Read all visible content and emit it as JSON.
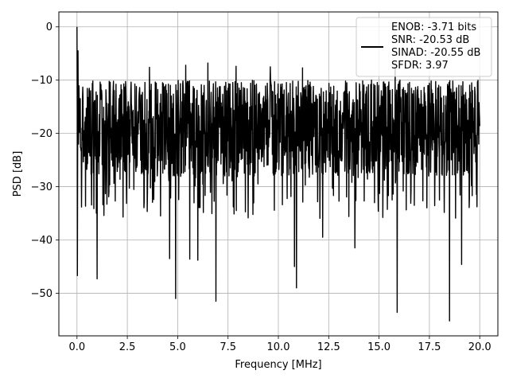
{
  "chart_data": {
    "type": "line",
    "title": "",
    "xlabel": "Frequency [MHz]",
    "ylabel": "PSD [dB]",
    "xlim": [
      -0.9,
      20.9
    ],
    "ylim": [
      -58,
      2.8
    ],
    "xticks": [
      0.0,
      2.5,
      5.0,
      7.5,
      10.0,
      12.5,
      15.0,
      17.5,
      20.0
    ],
    "xtick_labels": [
      "0.0",
      "2.5",
      "5.0",
      "7.5",
      "10.0",
      "12.5",
      "15.0",
      "17.5",
      "20.0"
    ],
    "yticks": [
      0,
      -10,
      -20,
      -30,
      -40,
      -50
    ],
    "ytick_labels": [
      "0",
      "−10",
      "−20",
      "−30",
      "−40",
      "−50"
    ],
    "grid": true,
    "legend_position": "top-right",
    "series": [
      {
        "color": "#000000",
        "x_range": [
          0,
          20
        ],
        "typical_band": [
          -28,
          -12
        ],
        "peaks": [
          {
            "x": 0.0,
            "y": 0.0
          },
          {
            "x": 0.05,
            "y": -4.5
          },
          {
            "x": 3.6,
            "y": -7.6
          },
          {
            "x": 5.4,
            "y": -7.2
          },
          {
            "x": 6.5,
            "y": -6.8
          },
          {
            "x": 7.9,
            "y": -7.4
          },
          {
            "x": 9.6,
            "y": -7.5
          },
          {
            "x": 11.2,
            "y": -7.7
          },
          {
            "x": 13.8,
            "y": -7.3
          },
          {
            "x": 15.8,
            "y": -7.6
          },
          {
            "x": 19.6,
            "y": -10.5
          }
        ],
        "troughs": [
          {
            "x": 0.02,
            "y": -46.7
          },
          {
            "x": 1.0,
            "y": -47.3
          },
          {
            "x": 4.6,
            "y": -43.5
          },
          {
            "x": 4.9,
            "y": -51.0
          },
          {
            "x": 5.6,
            "y": -43.6
          },
          {
            "x": 6.0,
            "y": -43.8
          },
          {
            "x": 6.9,
            "y": -51.5
          },
          {
            "x": 10.8,
            "y": -45.0
          },
          {
            "x": 10.9,
            "y": -49.0
          },
          {
            "x": 12.2,
            "y": -39.5
          },
          {
            "x": 13.8,
            "y": -41.5
          },
          {
            "x": 15.9,
            "y": -53.6
          },
          {
            "x": 18.5,
            "y": -55.2
          },
          {
            "x": 19.1,
            "y": -44.6
          }
        ]
      }
    ],
    "legend": {
      "lines": [
        "ENOB: -3.71 bits",
        "SNR: -20.53 dB",
        "SINAD: -20.55 dB",
        "SFDR: 3.97"
      ]
    }
  }
}
